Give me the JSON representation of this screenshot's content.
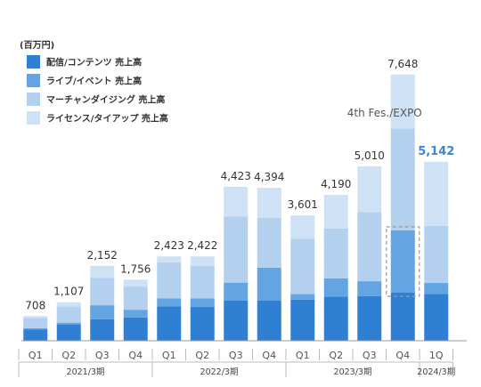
{
  "chart_data": {
    "type": "bar",
    "stacked": true,
    "unit_label": "(百万円)",
    "categories": [
      "Q1",
      "Q2",
      "Q3",
      "Q4",
      "Q1",
      "Q2",
      "Q3",
      "Q4",
      "Q1",
      "Q2",
      "Q3",
      "Q4",
      "1Q"
    ],
    "fiscal_years": [
      {
        "label": "2021/3期",
        "count": 4
      },
      {
        "label": "2022/3期",
        "count": 4
      },
      {
        "label": "2023/3期",
        "count": 4
      },
      {
        "label": "2024/3期",
        "count": 1
      }
    ],
    "series": [
      {
        "name": "配信/コンテンツ 売上高",
        "color": "#2f7fd3",
        "values": [
          320,
          460,
          620,
          670,
          990,
          970,
          1150,
          1150,
          1180,
          1270,
          1280,
          1380,
          1340
        ]
      },
      {
        "name": "ライブ/イベント 売上高",
        "color": "#63a4e2",
        "values": [
          40,
          60,
          400,
          220,
          230,
          250,
          520,
          950,
          160,
          520,
          430,
          1790,
          320
        ]
      },
      {
        "name": "マーチャンダイジング 売上高",
        "color": "#b3d1ef",
        "values": [
          298,
          467,
          782,
          666,
          1033,
          932,
          1903,
          1434,
          1591,
          1430,
          1990,
          2928,
          1642
        ]
      },
      {
        "name": "ライセンス/タイアップ 売上高",
        "color": "#cfe1f5",
        "values": [
          50,
          120,
          350,
          200,
          170,
          270,
          850,
          860,
          670,
          970,
          1310,
          1550,
          1840
        ]
      }
    ],
    "totals": [
      "708",
      "1,107",
      "2,152",
      "1,756",
      "2,423",
      "2,422",
      "4,423",
      "4,394",
      "3,601",
      "4,190",
      "5,010",
      "7,648",
      "5,142"
    ],
    "highlight_index": 12,
    "annotation": {
      "text": "4th Fes./EXPO",
      "category_index": 11
    },
    "ylim": [
      0,
      8000
    ]
  }
}
